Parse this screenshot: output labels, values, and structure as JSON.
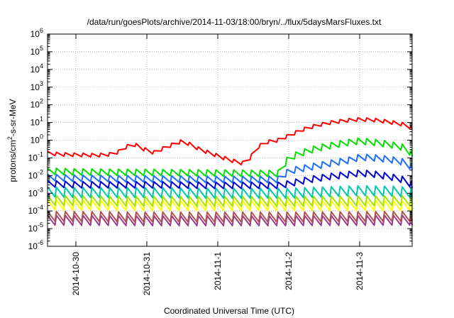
{
  "chart_data": {
    "type": "line",
    "title": "/data/run/goesPlots/archive/2014-11-03/18:00/bryn/../flux/5daysMarsFluxes.txt",
    "xlabel": "Coordinated Universal Time (UTC)",
    "ylabel": {
      "prefix": "protons/cm",
      "sup": "2",
      "suffix": "-s-sr-MeV"
    },
    "x_unit": "days since 2014-10-29 00:00 UTC",
    "xlim": [
      0.6,
      5.74
    ],
    "ylim": [
      1e-06,
      1000000.0
    ],
    "yscale": "log",
    "grid": true,
    "legend": "none",
    "x_ticks": [
      {
        "value": 1,
        "label": "2014-10-30"
      },
      {
        "value": 2,
        "label": "2014-10-31"
      },
      {
        "value": 3,
        "label": "2014-11-1"
      },
      {
        "value": 4,
        "label": "2014-11-2"
      },
      {
        "value": 5,
        "label": "2014-11-3"
      }
    ],
    "y_ticks": [
      {
        "value": 1e-06,
        "base": "10",
        "exp": "-6"
      },
      {
        "value": 1e-05,
        "base": "10",
        "exp": "-5"
      },
      {
        "value": 0.0001,
        "base": "10",
        "exp": "-4"
      },
      {
        "value": 0.001,
        "base": "10",
        "exp": "-3"
      },
      {
        "value": 0.01,
        "base": "10",
        "exp": "-2"
      },
      {
        "value": 0.1,
        "base": "10",
        "exp": "-1"
      },
      {
        "value": 1,
        "base": "10",
        "exp": "0"
      },
      {
        "value": 10.0,
        "base": "10",
        "exp": "1"
      },
      {
        "value": 100.0,
        "base": "10",
        "exp": "2"
      },
      {
        "value": 1000.0,
        "base": "10",
        "exp": "3"
      },
      {
        "value": 10000.0,
        "base": "10",
        "exp": "4"
      },
      {
        "value": 100000.0,
        "base": "10",
        "exp": "5"
      },
      {
        "value": 1000000.0,
        "base": "10",
        "exp": "6"
      }
    ],
    "sawtooth_period_days": 0.125,
    "series": [
      {
        "color": "#ff0000",
        "x": [
          0.6,
          0.75,
          1.0,
          1.3,
          1.5,
          1.6,
          1.7,
          1.8,
          1.95,
          2.1,
          2.3,
          2.5,
          2.6,
          2.75,
          2.9,
          3.05,
          3.2,
          3.35,
          3.45,
          3.55,
          3.7,
          3.85,
          4.0,
          4.2,
          4.4,
          4.6,
          4.8,
          5.0,
          5.2,
          5.4,
          5.6,
          5.74
        ],
        "y": [
          0.19,
          0.16,
          0.15,
          0.14,
          0.16,
          0.22,
          0.4,
          0.65,
          0.32,
          0.2,
          0.45,
          0.9,
          0.6,
          0.3,
          0.18,
          0.11,
          0.07,
          0.05,
          0.09,
          0.4,
          0.8,
          1.0,
          1.8,
          4.0,
          7.0,
          10,
          13,
          15,
          14,
          11,
          8,
          5
        ]
      },
      {
        "color": "#00e000",
        "x": [
          0.6,
          1.0,
          2.0,
          3.0,
          3.9,
          3.95,
          4.0,
          4.2,
          4.4,
          4.6,
          4.8,
          5.0,
          5.2,
          5.4,
          5.6,
          5.74
        ],
        "y": [
          0.018,
          0.016,
          0.015,
          0.014,
          0.013,
          0.05,
          0.1,
          0.2,
          0.35,
          0.5,
          0.7,
          0.9,
          0.75,
          0.6,
          0.4,
          0.18
        ]
      },
      {
        "color": "#1e6eff",
        "x": [
          0.6,
          1.0,
          2.0,
          3.0,
          3.9,
          3.95,
          4.0,
          4.3,
          4.6,
          4.9,
          5.0,
          5.2,
          5.4,
          5.6,
          5.74
        ],
        "y": [
          0.008,
          0.007,
          0.0065,
          0.006,
          0.006,
          0.012,
          0.018,
          0.03,
          0.05,
          0.08,
          0.11,
          0.1,
          0.085,
          0.06,
          0.03
        ]
      },
      {
        "color": "#0000d0",
        "x": [
          0.6,
          1.0,
          2.0,
          3.0,
          3.9,
          4.0,
          4.3,
          4.6,
          4.9,
          5.0,
          5.2,
          5.4,
          5.6,
          5.74
        ],
        "y": [
          0.0035,
          0.003,
          0.003,
          0.0028,
          0.0028,
          0.0035,
          0.006,
          0.009,
          0.012,
          0.014,
          0.012,
          0.009,
          0.006,
          0.003
        ]
      },
      {
        "color": "#00c8aa",
        "x": [
          0.6,
          1.0,
          2.0,
          3.0,
          3.95,
          4.5,
          5.0,
          5.5,
          5.74
        ],
        "y": [
          0.0012,
          0.0011,
          0.0011,
          0.001,
          0.001,
          0.0012,
          0.0014,
          0.0013,
          0.0011
        ]
      },
      {
        "color": "#a8e000",
        "x": [
          0.6,
          2.0,
          4.0,
          5.74
        ],
        "y": [
          0.0004,
          0.00035,
          0.00035,
          0.00038
        ]
      },
      {
        "color": "#ffff00",
        "x": [
          0.6,
          2.0,
          4.0,
          5.74
        ],
        "y": [
          0.00022,
          0.0002,
          0.0002,
          0.0002
        ]
      },
      {
        "color": "#b05050",
        "x": [
          0.6,
          2.0,
          4.0,
          5.74
        ],
        "y": [
          5e-05,
          4.5e-05,
          4.5e-05,
          5e-05
        ]
      },
      {
        "color": "#9c3a8c",
        "x": [
          0.6,
          2.0,
          4.0,
          5.74
        ],
        "y": [
          3e-05,
          2.8e-05,
          2.8e-05,
          3e-05
        ]
      }
    ]
  }
}
